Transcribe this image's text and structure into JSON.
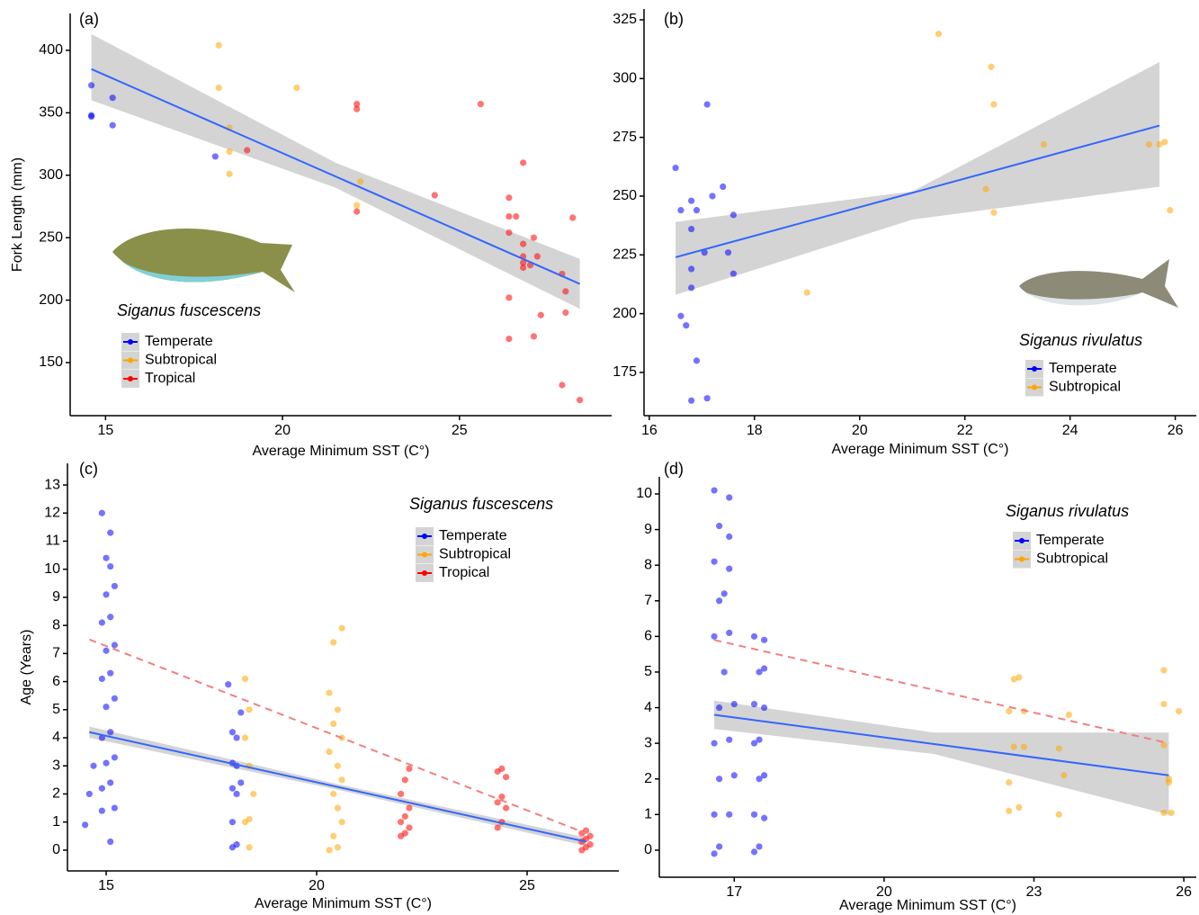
{
  "chart_data": [
    {
      "type": "scatter",
      "label": "(a)",
      "annotation": "Siganus fuscescens",
      "xlabel": "Average Minimum SST (C°)",
      "ylabel": "Fork Length (mm)",
      "xlim": [
        14,
        29.3
      ],
      "ylim": [
        107.5,
        429.5
      ],
      "xticks": [
        15,
        20,
        25
      ],
      "yticks": [
        150,
        200,
        250,
        300,
        350,
        400
      ],
      "series": [
        {
          "name": "Temperate",
          "color": "#0000ff",
          "x": [
            14.6,
            14.6,
            14.6,
            15.2,
            15.2,
            18.1
          ],
          "values": [
            372,
            348,
            347,
            362,
            340,
            315
          ]
        },
        {
          "name": "Subtropical",
          "color": "#ffa500",
          "x": [
            18.2,
            18.2,
            18.5,
            18.5,
            18.5,
            20.4,
            22.2,
            22.1
          ],
          "values": [
            404,
            370,
            338,
            319,
            301,
            370,
            295,
            276
          ]
        },
        {
          "name": "Tropical",
          "color": "#ff0000",
          "x": [
            19,
            22.1,
            22.1,
            22.1,
            24.3,
            25.6,
            26.4,
            26.4,
            26.6,
            26.4,
            26.4,
            26.4,
            26.8,
            26.8,
            26.8,
            26.8,
            26.8,
            27,
            27.1,
            27.2,
            27.1,
            27.3,
            27.9,
            28,
            28,
            27.9,
            28.2,
            28.4
          ],
          "values": [
            320,
            357,
            353,
            271,
            284,
            357,
            282,
            267,
            267,
            254,
            202,
            169,
            310,
            245,
            235,
            230,
            226,
            228,
            250,
            235,
            171,
            188,
            221,
            207,
            190,
            132,
            266,
            120
          ]
        }
      ],
      "bands": [
        {
          "x": [
            14.6,
            21.5,
            28.4
          ],
          "lower": [
            360,
            290,
            193
          ],
          "upper": [
            413,
            310,
            233
          ]
        }
      ],
      "fits": [
        {
          "color": "#3366ff",
          "dashed": false,
          "x": [
            14.6,
            28.4
          ],
          "values": [
            385,
            213
          ]
        }
      ]
    },
    {
      "type": "scatter",
      "label": "(b)",
      "annotation": "Siganus rivulatus",
      "xlabel": "Average Minimum SST (C°)",
      "xlim": [
        15.9,
        26.4
      ],
      "ylim": [
        156.6,
        329.6
      ],
      "xticks": [
        16,
        18,
        20,
        22,
        24,
        26
      ],
      "yticks": [
        175,
        200,
        225,
        250,
        275,
        300,
        325
      ],
      "series": [
        {
          "name": "Temperate",
          "color": "#0000ff",
          "x": [
            16.5,
            16.6,
            16.6,
            16.7,
            16.8,
            16.8,
            16.8,
            16.8,
            16.8,
            16.9,
            16.9,
            17.1,
            17.1,
            17.05,
            17.2,
            17.4,
            17.5,
            17.6,
            17.6
          ],
          "values": [
            262,
            244,
            199,
            195,
            248,
            236,
            219,
            211,
            163,
            244,
            180,
            289,
            164,
            226,
            250,
            254,
            226,
            242,
            217
          ]
        },
        {
          "name": "Subtropical",
          "color": "#ffa500",
          "x": [
            19,
            21.5,
            22.4,
            22.5,
            22.55,
            22.55,
            23.5,
            25.5,
            25.7,
            25.8,
            25.9
          ],
          "values": [
            209,
            319,
            253,
            305,
            289,
            243,
            272,
            272,
            272,
            273,
            244
          ]
        }
      ],
      "bands": [
        {
          "x": [
            16.5,
            21,
            25.7
          ],
          "lower": [
            208,
            240,
            254
          ],
          "upper": [
            239,
            252,
            307
          ]
        }
      ],
      "fits": [
        {
          "color": "#3366ff",
          "dashed": false,
          "x": [
            16.5,
            25.7
          ],
          "values": [
            224,
            280
          ]
        }
      ]
    },
    {
      "type": "scatter",
      "label": "(c)",
      "annotation": "Siganus fuscescens",
      "xlabel": "Average Minimum SST (C°)",
      "ylabel": "Age (Years)",
      "xlim": [
        14.08,
        27.18
      ],
      "ylim": [
        -0.74,
        13.77
      ],
      "xticks": [
        15,
        20,
        25
      ],
      "yticks": [
        0,
        1,
        2,
        3,
        4,
        5,
        6,
        7,
        8,
        9,
        10,
        11,
        12,
        13
      ],
      "series": [
        {
          "name": "Temperate",
          "color": "#0000ff",
          "x": [
            14.5,
            14.6,
            14.7,
            15.1,
            14.9,
            15.2,
            14.9,
            15.1,
            15.0,
            15.2,
            14.9,
            15.1,
            15.0,
            15.2,
            14.9,
            15.1,
            15.0,
            15.2,
            14.9,
            15.1,
            15.0,
            15.2,
            15.1,
            15.0,
            15.1,
            14.9,
            18.0,
            18.1,
            18.0,
            18.1,
            18.0,
            18.2,
            18.1,
            18.0,
            18.1,
            18.0,
            18.2,
            17.9
          ],
          "values": [
            0.9,
            2,
            3,
            0.3,
            1.4,
            1.5,
            2.2,
            2.4,
            3.1,
            3.3,
            4.0,
            4.2,
            5.1,
            5.4,
            6.1,
            6.3,
            7.1,
            7.3,
            8.1,
            8.3,
            9.1,
            9.4,
            10.1,
            10.4,
            11.3,
            12.0,
            0.1,
            0.2,
            1.0,
            2.0,
            2.2,
            2.4,
            3.0,
            3.1,
            4.0,
            4.2,
            4.9,
            5.9
          ]
        },
        {
          "name": "Subtropical",
          "color": "#ffa500",
          "x": [
            18.4,
            18.3,
            18.4,
            18.5,
            18.4,
            18.3,
            18.4,
            18.3,
            20.3,
            20.5,
            20.4,
            20.6,
            20.5,
            20.4,
            20.6,
            20.5,
            20.3,
            20.6,
            20.4,
            20.5,
            20.3,
            20.4,
            20.6
          ],
          "values": [
            0.1,
            1.0,
            1.1,
            2.0,
            3.0,
            4.0,
            5.0,
            6.1,
            0,
            0.1,
            0.5,
            1.0,
            1.5,
            2.0,
            2.5,
            3.0,
            3.5,
            4.0,
            4.5,
            5.0,
            5.6,
            7.4,
            7.9
          ]
        },
        {
          "name": "Tropical",
          "color": "#ff0000",
          "x": [
            22.0,
            22.1,
            22.2,
            22.0,
            22.1,
            22.2,
            22.0,
            22.1,
            22.2,
            24.3,
            24.4,
            24.5,
            24.3,
            24.4,
            24.5,
            24.3,
            24.4,
            26.3,
            26.4,
            26.5,
            26.3,
            26.4,
            26.5,
            26.3,
            26.4
          ],
          "values": [
            0.5,
            0.6,
            0.8,
            1.0,
            1.2,
            1.5,
            2.0,
            2.5,
            2.9,
            0.8,
            1.0,
            1.5,
            1.7,
            1.9,
            2.6,
            2.8,
            2.9,
            0,
            0.1,
            0.2,
            0.3,
            0.4,
            0.5,
            0.6,
            0.7
          ]
        }
      ],
      "bands": [
        {
          "x": [
            14.6,
            20.5,
            26.4
          ],
          "lower": [
            4.0,
            2.15,
            0.15
          ],
          "upper": [
            4.4,
            2.35,
            0.45
          ]
        }
      ],
      "fits": [
        {
          "color": "#3366ff",
          "dashed": false,
          "x": [
            14.6,
            26.4
          ],
          "values": [
            4.2,
            0.3
          ]
        },
        {
          "color": "#f08080",
          "dashed": true,
          "x": [
            14.6,
            26.4
          ],
          "values": [
            7.5,
            0.6
          ]
        }
      ]
    },
    {
      "type": "scatter",
      "label": "(d)",
      "annotation": "Siganus rivulatus",
      "xlabel": "Average Minimum SST (C°)",
      "xlim": [
        15.5,
        26.25
      ],
      "ylim": [
        -0.76,
        10.48
      ],
      "xticks": [
        17,
        20,
        23,
        26
      ],
      "yticks": [
        0,
        1,
        2,
        3,
        4,
        5,
        6,
        7,
        8,
        9,
        10
      ],
      "series": [
        {
          "name": "Temperate",
          "color": "#0000ff",
          "x": [
            16.6,
            16.7,
            16.6,
            16.9,
            16.7,
            17.0,
            16.6,
            16.9,
            16.7,
            17.0,
            16.8,
            16.6,
            16.9,
            16.7,
            16.8,
            16.9,
            16.6,
            16.9,
            16.7,
            16.9,
            16.6,
            17.4,
            17.5,
            17.6,
            17.4,
            17.5,
            17.6,
            17.4,
            17.5,
            17.6,
            17.4,
            17.5,
            17.6,
            17.4,
            17.6
          ],
          "values": [
            -0.1,
            0.1,
            1.0,
            1.0,
            2.0,
            2.1,
            3.0,
            3.1,
            4.0,
            4.1,
            5.0,
            6.0,
            6.1,
            7.0,
            7.2,
            7.9,
            8.1,
            8.8,
            9.1,
            9.9,
            10.1,
            -0.05,
            0.1,
            0.9,
            1.0,
            2.0,
            2.1,
            3.0,
            3.1,
            4.0,
            4.1,
            5.0,
            5.1,
            6.0,
            5.9
          ]
        },
        {
          "name": "Subtropical",
          "color": "#ffa500",
          "x": [
            22.5,
            22.5,
            22.6,
            22.5,
            22.6,
            22.7,
            22.8,
            22.8,
            22.7,
            23.5,
            23.6,
            23.7,
            23.5,
            25.6,
            25.7,
            25.7,
            25.6,
            25.6,
            25.6,
            25.9,
            25.75
          ],
          "values": [
            1.1,
            1.9,
            2.9,
            3.9,
            4.8,
            1.2,
            3.9,
            2.9,
            4.85,
            1.0,
            2.1,
            3.8,
            2.85,
            1.05,
            1.9,
            2.0,
            2.95,
            4.1,
            5.05,
            3.9,
            1.05
          ]
        }
      ],
      "bands": [
        {
          "x": [
            16.6,
            21,
            25.7
          ],
          "lower": [
            3.4,
            2.7,
            1.0
          ],
          "upper": [
            4.2,
            3.3,
            3.3
          ]
        }
      ],
      "fits": [
        {
          "color": "#3366ff",
          "dashed": false,
          "x": [
            16.6,
            25.7
          ],
          "values": [
            3.8,
            2.1
          ]
        },
        {
          "color": "#f08080",
          "dashed": true,
          "x": [
            16.6,
            25.7
          ],
          "values": [
            5.9,
            3.0
          ]
        }
      ]
    }
  ]
}
